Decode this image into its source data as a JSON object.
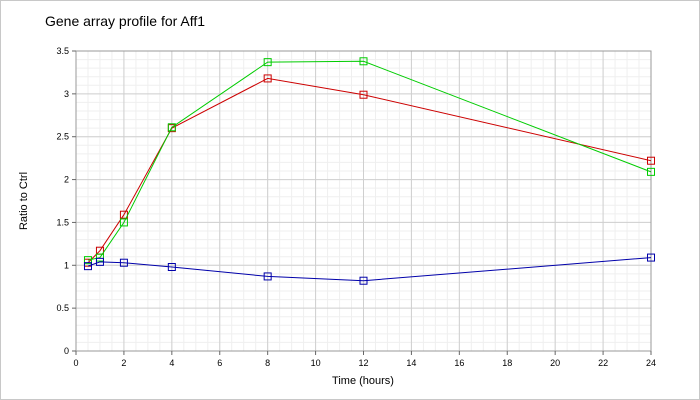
{
  "chart_data": {
    "type": "line",
    "title": "Gene array profile for Aff1",
    "xlabel": "Time (hours)",
    "ylabel": "Ratio to Ctrl",
    "xlim": [
      0,
      24
    ],
    "ylim": [
      0,
      3.5
    ],
    "xticks": [
      0,
      2,
      4,
      6,
      8,
      10,
      12,
      14,
      16,
      18,
      20,
      22,
      24
    ],
    "yticks": [
      0,
      0.5,
      1,
      1.5,
      2,
      2.5,
      3,
      3.5
    ],
    "grid": true,
    "legend": "none",
    "marker": "square",
    "series": [
      {
        "color": "#cc0000",
        "x": [
          0.5,
          1,
          2,
          4,
          8,
          12,
          24
        ],
        "y": [
          1.03,
          1.17,
          1.59,
          2.6,
          3.18,
          2.99,
          2.22
        ]
      },
      {
        "color": "#00cc00",
        "x": [
          0.5,
          1,
          2,
          4,
          8,
          12,
          24
        ],
        "y": [
          1.06,
          1.09,
          1.5,
          2.61,
          3.37,
          3.38,
          2.09
        ]
      },
      {
        "color": "#0000aa",
        "x": [
          0.5,
          1,
          2,
          4,
          8,
          12,
          24
        ],
        "y": [
          0.99,
          1.04,
          1.03,
          0.98,
          0.87,
          0.82,
          1.09
        ]
      }
    ]
  }
}
